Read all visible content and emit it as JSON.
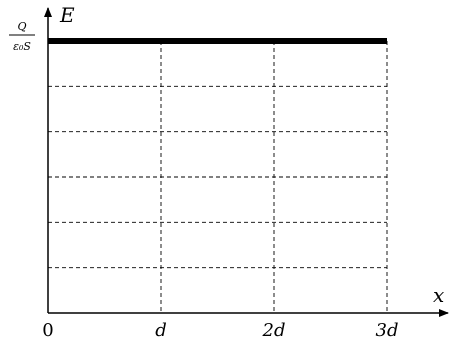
{
  "chart_data": {
    "type": "line",
    "title": "",
    "xlabel": "x",
    "ylabel": "E",
    "x_ticks": [
      {
        "value": 0,
        "label": "0"
      },
      {
        "value": 1,
        "label": "d"
      },
      {
        "value": 2,
        "label": "2d"
      },
      {
        "value": 3,
        "label": "3d"
      }
    ],
    "y_ticks": [
      {
        "value": 1,
        "label_numerator": "Q",
        "label_denominator": "ε₀S"
      }
    ],
    "xlim": [
      0,
      3
    ],
    "ylim": [
      0,
      1
    ],
    "grid": true,
    "gridlines_y_count": 6,
    "series": [
      {
        "x": [
          0,
          3
        ],
        "values": [
          1,
          1
        ]
      }
    ]
  }
}
